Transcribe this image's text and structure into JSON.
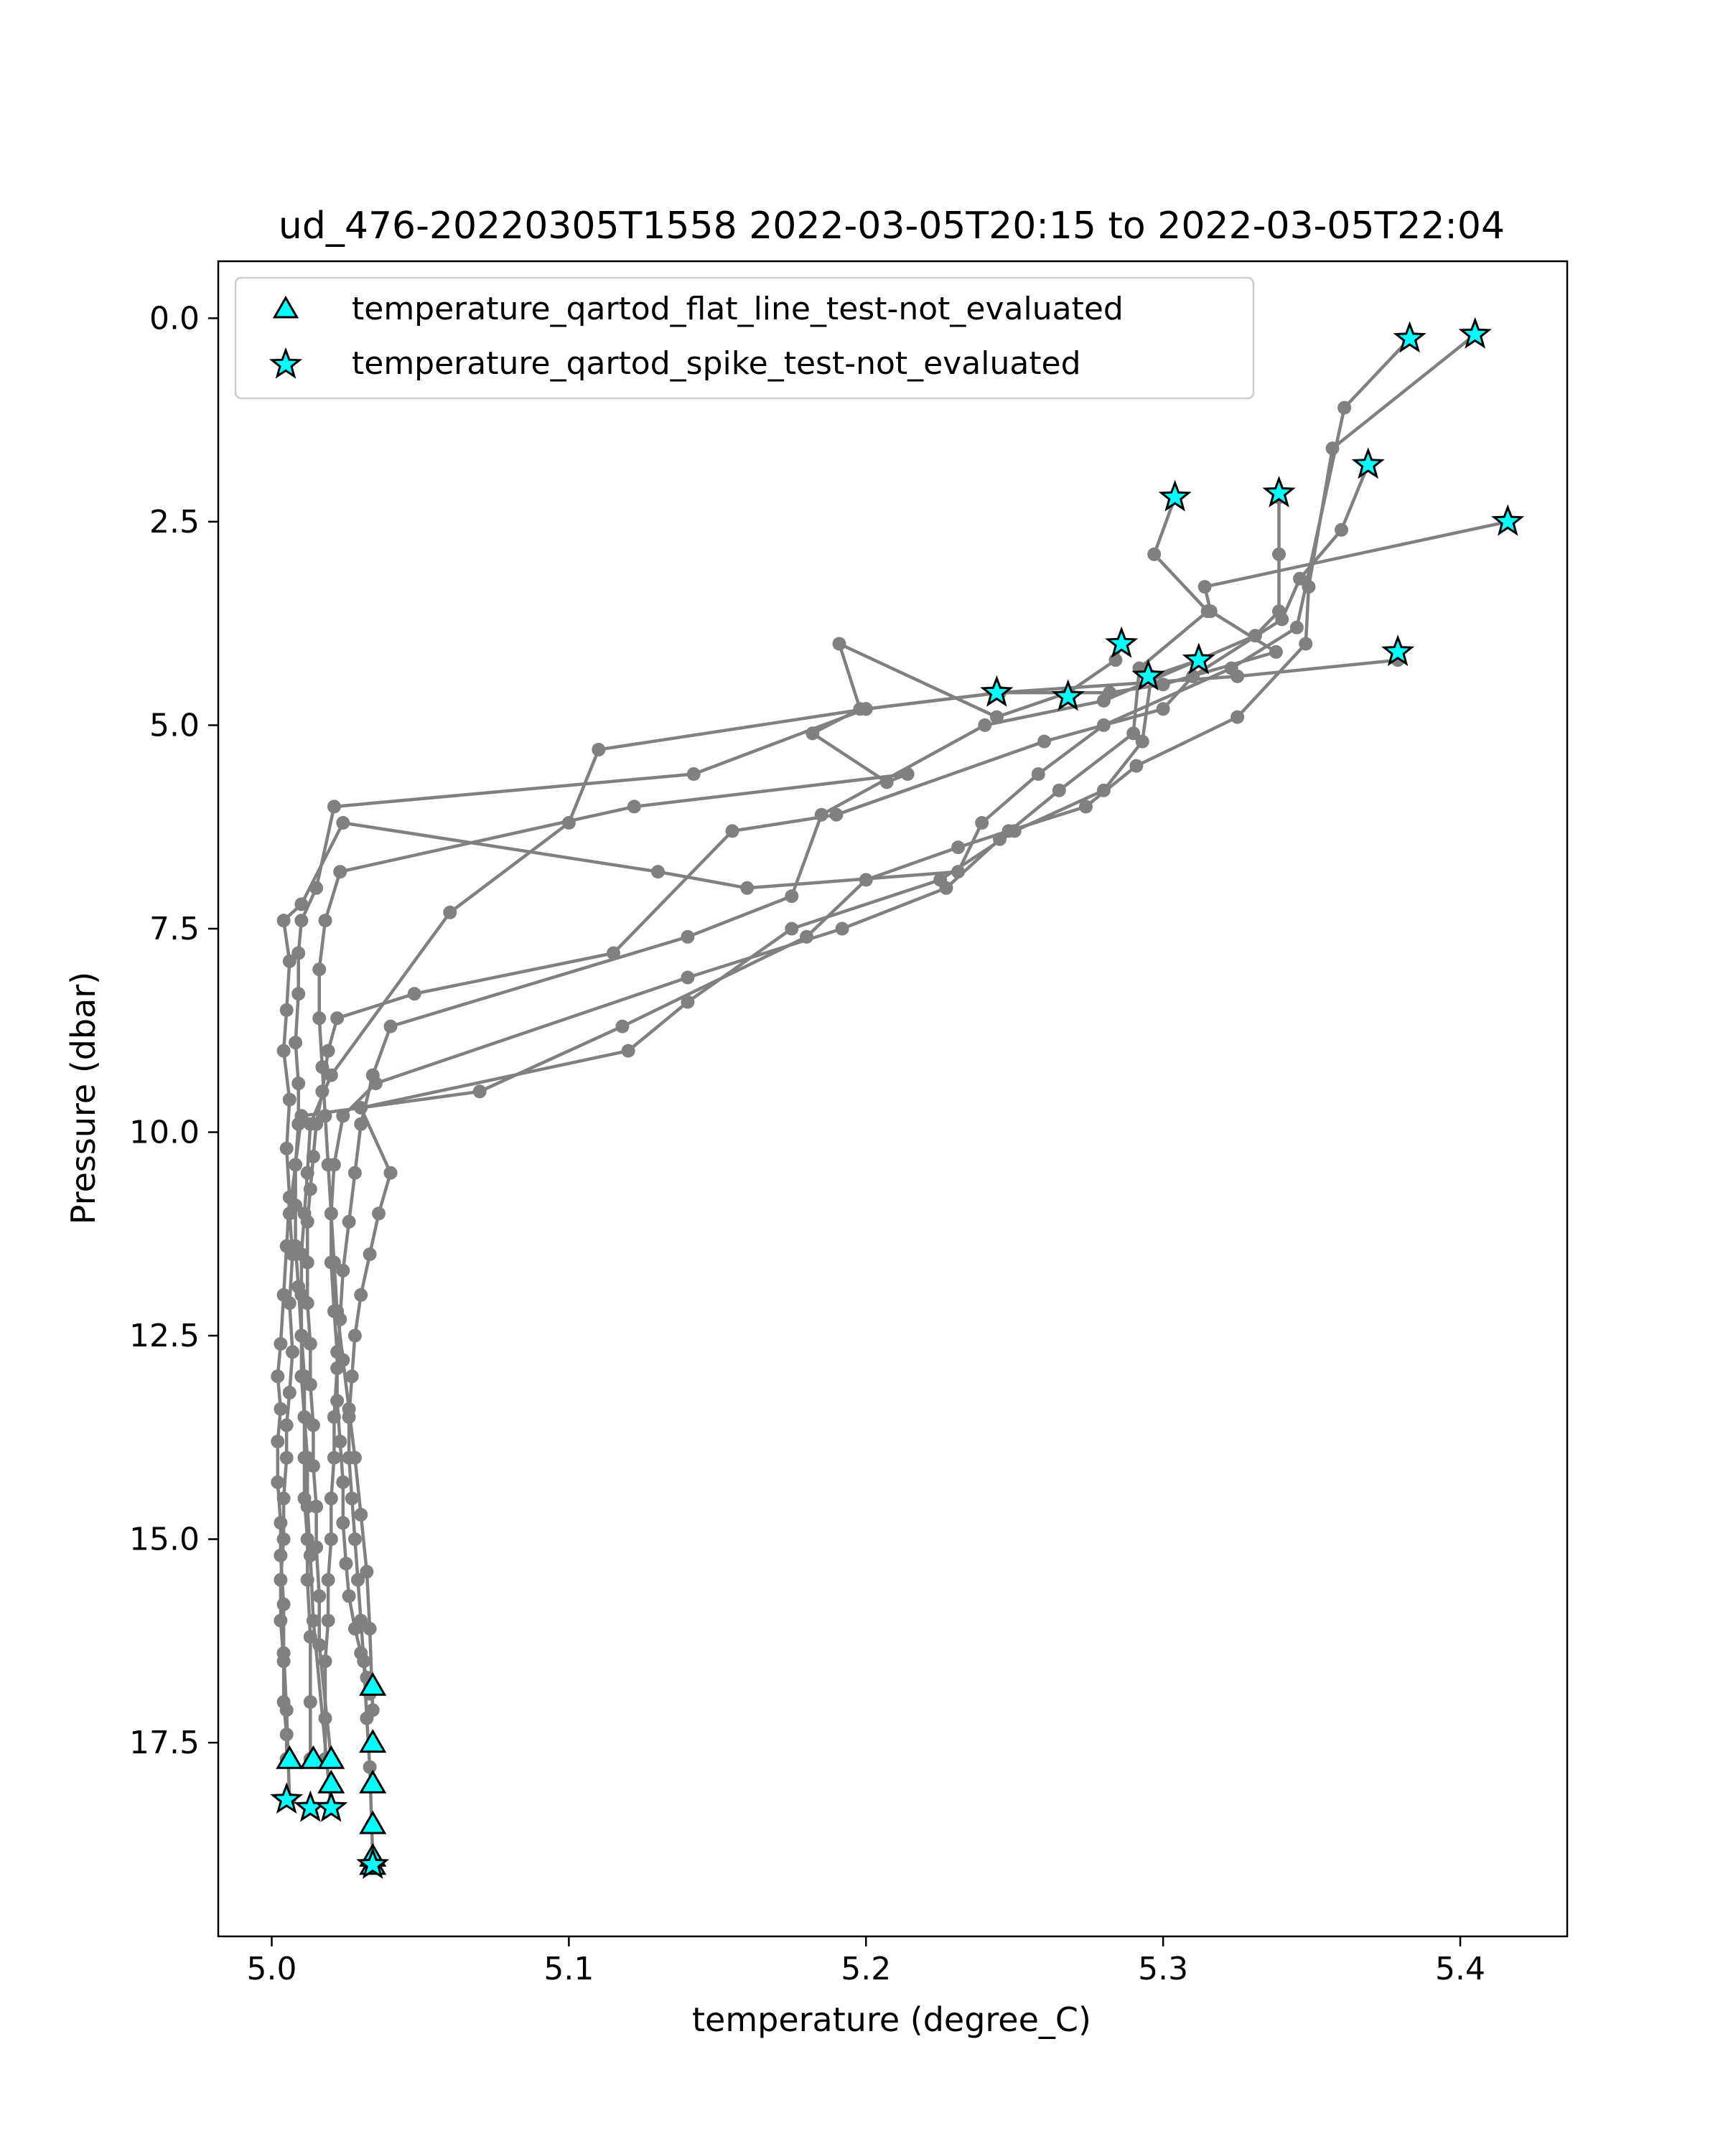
{
  "chart_data": {
    "type": "line",
    "title": "ud_476-20220305T1558 2022-03-05T20:15 to 2022-03-05T22:04",
    "xlabel": "temperature (degree_C)",
    "ylabel": "Pressure (dbar)",
    "xlim": [
      4.982,
      5.436
    ],
    "ylim": [
      19.88,
      -0.7
    ],
    "y_inverted": true,
    "x_ticks": [
      "5.0",
      "5.1",
      "5.2",
      "5.3",
      "5.4"
    ],
    "x_tick_values": [
      5.0,
      5.1,
      5.2,
      5.3,
      5.4
    ],
    "y_ticks": [
      "0.0",
      "2.5",
      "5.0",
      "7.5",
      "10.0",
      "12.5",
      "15.0",
      "17.5"
    ],
    "y_tick_values": [
      0.0,
      2.5,
      5.0,
      7.5,
      10.0,
      12.5,
      15.0,
      17.5
    ],
    "grid": false,
    "legend_position": "top-left",
    "colors": {
      "line": "#808080",
      "marker_fill": "#00ffff",
      "marker_edge": "#000000",
      "axes": "#000000"
    },
    "legend": [
      {
        "label": "temperature_qartod_flat_line_test-not_evaluated",
        "marker": "triangle"
      },
      {
        "label": "temperature_qartod_spike_test-not_evaluated",
        "marker": "star"
      }
    ],
    "series": [
      {
        "name": "profile-1",
        "x": [
          5.383,
          5.361,
          5.345,
          5.323,
          5.28,
          5.258,
          5.239,
          5.231,
          5.16,
          5.13,
          5.024,
          5.01,
          5.004,
          5.006,
          5.005,
          5.004,
          5.006,
          5.005,
          5.006,
          5.005,
          5.004,
          5.003,
          5.002,
          5.003,
          5.002,
          5.002,
          5.003,
          5.003,
          5.004,
          5.004,
          5.005,
          5.006
        ],
        "y": [
          0.25,
          1.1,
          3.8,
          4.3,
          5.0,
          5.6,
          6.2,
          6.8,
          7.0,
          6.8,
          6.2,
          7.2,
          7.4,
          7.9,
          8.5,
          9.0,
          9.6,
          10.2,
          10.8,
          11.4,
          12.0,
          12.6,
          13.0,
          13.4,
          13.8,
          14.3,
          14.8,
          15.2,
          15.8,
          16.4,
          17.1,
          18.2
        ]
      },
      {
        "name": "profile-2",
        "x": [
          5.405,
          5.357,
          5.349,
          5.348,
          5.325,
          5.291,
          5.274,
          5.248,
          5.231,
          5.2,
          5.18,
          5.118,
          5.07,
          5.01,
          5.008,
          5.006,
          5.007,
          5.006,
          5.007,
          5.006,
          5.005,
          5.005,
          5.004,
          5.004,
          5.003,
          5.003,
          5.004,
          5.004,
          5.005,
          5.005,
          5.005
        ],
        "y": [
          0.2,
          1.6,
          3.3,
          4.0,
          4.9,
          5.5,
          6.0,
          6.3,
          6.5,
          6.9,
          7.6,
          8.7,
          9.5,
          9.8,
          10.4,
          11.0,
          11.5,
          12.1,
          12.7,
          13.2,
          13.6,
          14.0,
          14.5,
          15.0,
          15.5,
          16.0,
          16.5,
          17.0,
          17.4,
          17.7,
          17.7
        ]
      },
      {
        "name": "profile-3",
        "x": [
          5.416,
          5.314,
          5.316,
          5.338,
          5.3,
          5.282,
          5.245,
          5.2,
          5.142,
          5.021,
          5.015,
          5.01,
          5.009,
          5.009,
          5.008,
          5.009,
          5.009,
          5.008,
          5.008,
          5.008,
          5.009,
          5.01,
          5.011,
          5.011,
          5.012,
          5.012,
          5.013,
          5.014,
          5.02
        ],
        "y": [
          2.5,
          3.3,
          3.6,
          4.1,
          4.5,
          4.6,
          4.6,
          4.8,
          5.6,
          6.0,
          7.0,
          7.4,
          7.8,
          8.3,
          8.9,
          9.4,
          9.9,
          10.4,
          10.9,
          11.4,
          11.9,
          12.5,
          13.0,
          13.5,
          14.0,
          14.6,
          15.2,
          16.0,
          18.3
        ]
      },
      {
        "name": "profile-4",
        "x": [
          5.369,
          5.36,
          5.346,
          5.34,
          5.31,
          5.3,
          5.26,
          5.19,
          5.155,
          5.115,
          5.048,
          5.022,
          5.019,
          5.017,
          5.015,
          5.014,
          5.013,
          5.012,
          5.012,
          5.012,
          5.013,
          5.013,
          5.014,
          5.014,
          5.015,
          5.015,
          5.016,
          5.016,
          5.02
        ],
        "y": [
          1.8,
          2.6,
          3.2,
          3.7,
          4.4,
          4.8,
          5.2,
          6.1,
          6.3,
          7.8,
          8.3,
          8.6,
          9.0,
          9.5,
          9.9,
          10.3,
          10.7,
          11.1,
          11.6,
          12.1,
          12.6,
          13.1,
          13.6,
          14.1,
          14.6,
          15.1,
          15.7,
          16.3,
          17.7
        ]
      },
      {
        "name": "profile-5",
        "x": [
          5.339,
          5.339,
          5.339,
          5.331,
          5.28,
          5.24,
          5.185,
          5.175,
          5.14,
          5.04,
          5.034,
          5.03,
          5.028,
          5.026,
          5.024,
          5.023,
          5.022,
          5.021,
          5.021,
          5.02,
          5.02,
          5.019,
          5.019,
          5.018,
          5.018,
          5.018
        ],
        "y": [
          2.2,
          2.9,
          3.6,
          3.9,
          4.7,
          5.0,
          6.1,
          7.1,
          7.6,
          8.7,
          9.3,
          9.9,
          10.5,
          11.1,
          11.7,
          12.3,
          12.9,
          13.5,
          14.0,
          14.5,
          15.0,
          15.5,
          16.0,
          16.5,
          17.2,
          17.7
        ]
      },
      {
        "name": "profile-6",
        "x": [
          5.304,
          5.297,
          5.315,
          5.292,
          5.29,
          5.265,
          5.245,
          5.227,
          5.192,
          5.14,
          5.035,
          5.024,
          5.021,
          5.02,
          5.02,
          5.021,
          5.022,
          5.022,
          5.023,
          5.024,
          5.024,
          5.025,
          5.026,
          5.028,
          5.03,
          5.032,
          5.033
        ],
        "y": [
          2.2,
          2.9,
          3.6,
          4.3,
          5.1,
          5.8,
          6.4,
          7.0,
          7.5,
          8.1,
          9.4,
          9.8,
          10.4,
          11.0,
          11.6,
          12.2,
          12.7,
          13.3,
          13.8,
          14.3,
          14.8,
          15.3,
          15.7,
          16.1,
          16.4,
          16.7,
          16.9
        ]
      },
      {
        "name": "profile-7",
        "x": [
          5.286,
          5.284,
          5.268,
          5.244,
          5.191,
          5.198,
          5.182,
          5.207,
          5.214,
          5.122,
          5.023,
          5.018,
          5.016,
          5.016,
          5.017,
          5.018,
          5.019,
          5.02,
          5.021,
          5.022,
          5.024,
          5.026,
          5.028,
          5.03,
          5.032,
          5.033,
          5.034
        ],
        "y": [
          4.0,
          4.2,
          4.6,
          4.9,
          4.0,
          4.8,
          5.1,
          5.7,
          5.6,
          6.0,
          6.8,
          7.4,
          8.0,
          8.6,
          9.2,
          9.8,
          10.4,
          11.0,
          11.6,
          12.2,
          12.8,
          13.4,
          14.0,
          14.7,
          15.4,
          16.1,
          17.1
        ]
      },
      {
        "name": "profile-8",
        "x": [
          5.312,
          5.296,
          5.293,
          5.28,
          5.25,
          5.225,
          5.175,
          5.14,
          5.12,
          5.03,
          5.04,
          5.036,
          5.033,
          5.03,
          5.028,
          5.027,
          5.026,
          5.026,
          5.027,
          5.028,
          5.029,
          5.03,
          5.031,
          5.032,
          5.033,
          5.034
        ],
        "y": [
          4.2,
          4.4,
          5.2,
          5.8,
          6.3,
          6.9,
          7.5,
          8.4,
          9.0,
          9.7,
          10.5,
          11.0,
          11.5,
          12.0,
          12.5,
          13.0,
          13.5,
          14.0,
          14.5,
          15.0,
          15.5,
          16.0,
          16.5,
          17.2,
          17.8,
          18.9
        ]
      },
      {
        "name": "profile-9",
        "x": [
          5.379,
          5.325,
          5.245,
          5.2,
          5.11,
          5.1,
          5.06,
          5.02,
          5.013,
          5.012,
          5.011,
          5.01,
          5.01,
          5.01,
          5.01,
          5.011,
          5.011,
          5.011,
          5.012,
          5.012,
          5.013,
          5.013,
          5.013
        ],
        "y": [
          4.2,
          4.4,
          4.6,
          4.8,
          5.3,
          6.2,
          7.3,
          9.3,
          9.9,
          10.5,
          11.0,
          11.5,
          12.0,
          12.5,
          13.0,
          13.5,
          14.0,
          14.5,
          15.0,
          15.5,
          16.2,
          17.0,
          17.7
        ]
      }
    ],
    "flat_line_points": {
      "label": "temperature_qartod_flat_line_test-not_evaluated",
      "x": [
        5.034,
        5.034,
        5.034,
        5.034,
        5.034,
        5.006,
        5.014,
        5.02,
        5.02,
        5.034
      ],
      "y": [
        16.8,
        17.5,
        18.0,
        18.5,
        18.9,
        17.7,
        17.7,
        17.7,
        18.0,
        19.0
      ]
    },
    "spike_points": {
      "label": "temperature_qartod_spike_test-not_evaluated",
      "x": [
        5.383,
        5.405,
        5.369,
        5.304,
        5.339,
        5.416,
        5.286,
        5.312,
        5.295,
        5.244,
        5.268,
        5.379,
        5.005,
        5.013,
        5.02,
        5.034
      ],
      "y": [
        0.25,
        0.2,
        1.8,
        2.2,
        2.15,
        2.5,
        4.0,
        4.2,
        4.4,
        4.6,
        4.65,
        4.1,
        18.2,
        18.3,
        18.3,
        19.0
      ]
    }
  }
}
